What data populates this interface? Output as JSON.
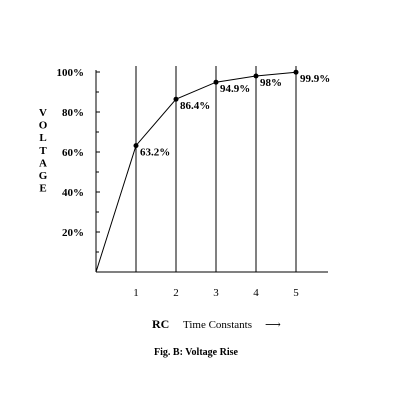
{
  "chart_data": {
    "type": "line",
    "caption": "Fig. B: Voltage Rise",
    "ylabel": "VOLTAGE",
    "xlabel_abbrev": "RC",
    "xlabel_text": "Time Constants",
    "xlabel_arrow": "⟶",
    "xlim": [
      0,
      5.8
    ],
    "ylim": [
      0,
      100
    ],
    "x_ticks": [
      {
        "value": 1,
        "label": "1"
      },
      {
        "value": 2,
        "label": "2"
      },
      {
        "value": 3,
        "label": "3"
      },
      {
        "value": 4,
        "label": "4"
      },
      {
        "value": 5,
        "label": "5"
      }
    ],
    "y_ticks": [
      {
        "value": 20,
        "label": "20%"
      },
      {
        "value": 40,
        "label": "40%"
      },
      {
        "value": 60,
        "label": "60%"
      },
      {
        "value": 80,
        "label": "80%"
      },
      {
        "value": 100,
        "label": "100%"
      }
    ],
    "vertical_gridlines": [
      1,
      2,
      3,
      4,
      5
    ],
    "series": [
      {
        "points": [
          {
            "x": 0,
            "y": 0,
            "label": ""
          },
          {
            "x": 1,
            "y": 63.2,
            "label": "63.2%"
          },
          {
            "x": 2,
            "y": 86.4,
            "label": "86.4%"
          },
          {
            "x": 3,
            "y": 94.9,
            "label": "94.9%"
          },
          {
            "x": 4,
            "y": 98,
            "label": "98%"
          },
          {
            "x": 5,
            "y": 99.9,
            "label": "99.9%"
          }
        ]
      }
    ]
  }
}
